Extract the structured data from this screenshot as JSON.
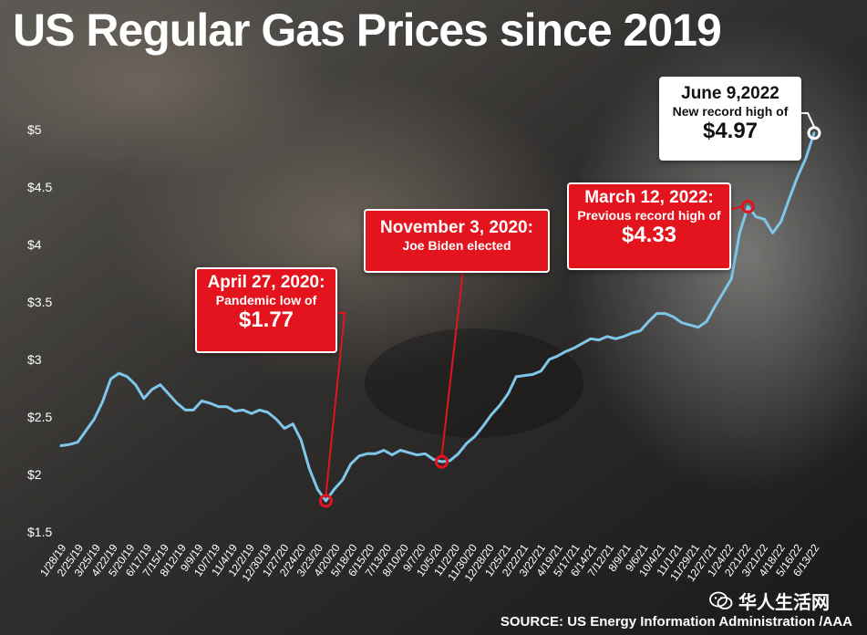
{
  "title": "US Regular Gas Prices since 2019",
  "source": "SOURCE: US Energy Information Administration /AAA",
  "watermark": "华人生活网",
  "colors": {
    "line": "#7fc6ea",
    "accent": "#e3141d",
    "background": "#2a2a2a",
    "text": "#ffffff"
  },
  "callouts": {
    "low": {
      "date": "April 27, 2020:",
      "note": "Pandemic low of",
      "value": "$1.77"
    },
    "election": {
      "date": "November 3, 2020:",
      "note": "Joe Biden elected"
    },
    "prev_record": {
      "date": "March 12, 2022:",
      "note": "Previous record high of",
      "value": "$4.33"
    },
    "record": {
      "date": "June 9,2022",
      "note": "New record high of",
      "value": "$4.97"
    }
  },
  "chart_data": {
    "type": "line",
    "title": "US Regular Gas Prices since 2019",
    "xlabel": "",
    "ylabel": "",
    "ylim": [
      1.5,
      5
    ],
    "yticks": [
      "$1.5",
      "$2",
      "$2.5",
      "$3",
      "$3.5",
      "$4",
      "$4.5",
      "$5"
    ],
    "ytick_values": [
      1.5,
      2,
      2.5,
      3,
      3.5,
      4,
      4.5,
      5
    ],
    "xticks": [
      "1/28/19",
      "2/25/19",
      "3/25/19",
      "4/22/19",
      "5/20/19",
      "6/17/19",
      "7/15/19",
      "8/12/19",
      "9/9/19",
      "10/7/19",
      "11/4/19",
      "12/2/19",
      "12/30/19",
      "1/27/20",
      "2/24/20",
      "3/23/20",
      "4/20/20",
      "5/18/20",
      "6/15/20",
      "7/13/20",
      "8/10/20",
      "9/7/20",
      "10/5/20",
      "11/2/20",
      "11/30/20",
      "12/28/20",
      "1/25/21",
      "2/22/21",
      "3/22/21",
      "4/19/21",
      "5/17/21",
      "6/14/21",
      "7/12/21",
      "8/9/21",
      "9/6/21",
      "10/4/21",
      "11/1/21",
      "11/29/21",
      "12/27/21",
      "1/24/22",
      "2/21/22",
      "3/21/22",
      "4/18/22",
      "5/16/22",
      "6/13/22"
    ],
    "grid": false,
    "series": [
      {
        "values": [
          2.25,
          2.26,
          2.28,
          2.38,
          2.48,
          2.63,
          2.83,
          2.88,
          2.85,
          2.78,
          2.66,
          2.74,
          2.78,
          2.7,
          2.62,
          2.56,
          2.56,
          2.64,
          2.62,
          2.59,
          2.59,
          2.55,
          2.56,
          2.53,
          2.56,
          2.54,
          2.48,
          2.4,
          2.44,
          2.3,
          2.05,
          1.87,
          1.77,
          1.87,
          1.95,
          2.09,
          2.16,
          2.18,
          2.18,
          2.21,
          2.17,
          2.21,
          2.19,
          2.17,
          2.18,
          2.13,
          2.11,
          2.12,
          2.18,
          2.27,
          2.33,
          2.42,
          2.52,
          2.6,
          2.7,
          2.85,
          2.86,
          2.87,
          2.9,
          3.0,
          3.03,
          3.07,
          3.1,
          3.14,
          3.18,
          3.17,
          3.2,
          3.18,
          3.2,
          3.23,
          3.25,
          3.33,
          3.4,
          3.4,
          3.37,
          3.32,
          3.3,
          3.28,
          3.33,
          3.46,
          3.58,
          3.7,
          4.1,
          4.33,
          4.24,
          4.22,
          4.1,
          4.2,
          4.4,
          4.59,
          4.75,
          4.97
        ]
      }
    ],
    "annotations": [
      {
        "label": "April 27, 2020: Pandemic low of $1.77",
        "index": 32,
        "value": 1.77
      },
      {
        "label": "November 3, 2020: Joe Biden elected",
        "index": 46,
        "value": 2.11
      },
      {
        "label": "March 12, 2022: Previous record high of $4.33",
        "index": 83,
        "value": 4.33
      },
      {
        "label": "June 9,2022 New record high of $4.97",
        "index": 91,
        "value": 4.97
      }
    ]
  }
}
